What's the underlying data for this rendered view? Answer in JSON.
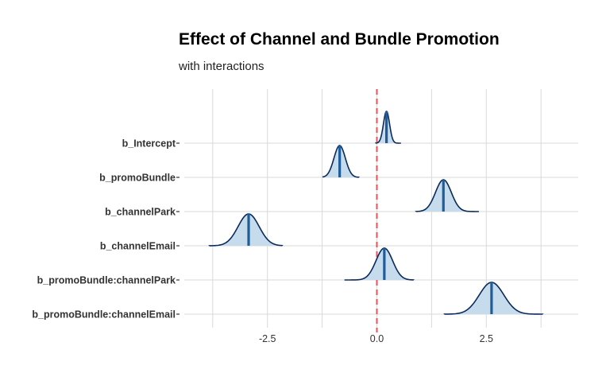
{
  "chart_data": {
    "type": "ridgeline",
    "title": "Effect of Channel and Bundle Promotion",
    "subtitle": "with interactions",
    "xlabel": "",
    "ylabel": "",
    "xlim": [
      -4.4,
      4.6
    ],
    "x_ticks": [
      {
        "value": -2.5,
        "label": "-2.5"
      },
      {
        "value": 0.0,
        "label": "0.0"
      },
      {
        "value": 2.5,
        "label": "2.5"
      }
    ],
    "reference_line": {
      "x": 0,
      "style": "dashed",
      "color": "#e8545a"
    },
    "grid": true,
    "fill_color": "#c6dbec",
    "line_color": "#0a2a5c",
    "median_color": "#1f5d99",
    "parameters": [
      {
        "name": "b_Intercept",
        "median": 0.22,
        "sd": 0.07,
        "range": [
          -0.03,
          0.55
        ]
      },
      {
        "name": "b_promoBundle",
        "median": -0.85,
        "sd": 0.13,
        "range": [
          -1.23,
          -0.41
        ]
      },
      {
        "name": "b_channelPark",
        "median": 1.52,
        "sd": 0.18,
        "range": [
          0.89,
          2.33
        ]
      },
      {
        "name": "b_channelEmail",
        "median": -2.93,
        "sd": 0.24,
        "range": [
          -3.83,
          -2.16
        ]
      },
      {
        "name": "b_promoBundle:channelPark",
        "median": 0.17,
        "sd": 0.19,
        "range": [
          -0.74,
          0.84
        ]
      },
      {
        "name": "b_promoBundle:channelEmail",
        "median": 2.62,
        "sd": 0.28,
        "range": [
          1.54,
          3.79
        ]
      }
    ]
  }
}
